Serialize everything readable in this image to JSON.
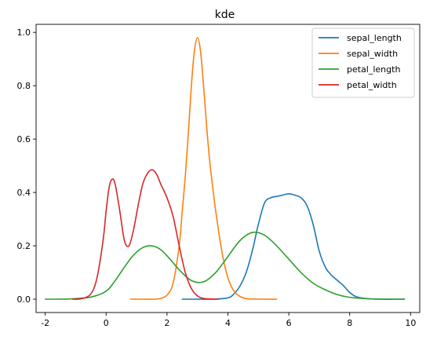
{
  "chart_data": {
    "type": "line",
    "title": "kde",
    "xlabel": "",
    "ylabel": "",
    "xlim": [
      -2.3,
      10.3
    ],
    "ylim": [
      -0.05,
      1.03
    ],
    "x_ticks": [
      -2,
      0,
      2,
      4,
      6,
      8,
      10
    ],
    "x_tick_labels": [
      "-2",
      "0",
      "2",
      "4",
      "6",
      "8",
      "10"
    ],
    "y_ticks": [
      0.0,
      0.2,
      0.4,
      0.6,
      0.8,
      1.0
    ],
    "y_tick_labels": [
      "0.0",
      "0.2",
      "0.4",
      "0.6",
      "0.8",
      "1.0"
    ],
    "grid": false,
    "legend_position": "top-right",
    "series": [
      {
        "name": "sepal_length",
        "color": "#1f77b4",
        "x": [
          2.5,
          3.0,
          3.5,
          4.0,
          4.2,
          4.4,
          4.6,
          4.8,
          5.0,
          5.2,
          5.4,
          5.6,
          5.8,
          6.0,
          6.2,
          6.4,
          6.6,
          6.8,
          7.0,
          7.2,
          7.4,
          7.6,
          7.8,
          8.0,
          8.2,
          8.5,
          9.0,
          9.5,
          9.8
        ],
        "y": [
          0.0,
          0.0,
          0.0,
          0.005,
          0.02,
          0.05,
          0.1,
          0.18,
          0.28,
          0.36,
          0.38,
          0.385,
          0.39,
          0.395,
          0.39,
          0.38,
          0.35,
          0.28,
          0.18,
          0.12,
          0.09,
          0.07,
          0.05,
          0.025,
          0.01,
          0.003,
          0.0,
          0.0,
          0.0
        ]
      },
      {
        "name": "sepal_width",
        "color": "#ff7f0e",
        "x": [
          0.8,
          1.2,
          1.6,
          1.8,
          2.0,
          2.2,
          2.4,
          2.5,
          2.6,
          2.7,
          2.8,
          2.9,
          3.0,
          3.1,
          3.2,
          3.3,
          3.4,
          3.5,
          3.6,
          3.8,
          4.0,
          4.2,
          4.4,
          4.6,
          5.0,
          5.6
        ],
        "y": [
          0.0,
          0.0,
          0.0,
          0.003,
          0.015,
          0.06,
          0.2,
          0.33,
          0.46,
          0.62,
          0.8,
          0.93,
          0.98,
          0.93,
          0.8,
          0.65,
          0.52,
          0.42,
          0.33,
          0.18,
          0.08,
          0.03,
          0.01,
          0.002,
          0.0,
          0.0
        ]
      },
      {
        "name": "petal_length",
        "color": "#2ca02c",
        "x": [
          -2.0,
          -1.2,
          -0.5,
          0.0,
          0.3,
          0.6,
          0.9,
          1.2,
          1.5,
          1.8,
          2.1,
          2.4,
          2.8,
          3.2,
          3.6,
          4.0,
          4.4,
          4.8,
          5.2,
          5.6,
          6.0,
          6.4,
          6.8,
          7.2,
          7.6,
          8.0,
          8.5,
          9.0,
          9.5,
          9.8
        ],
        "y": [
          0.0,
          0.001,
          0.008,
          0.03,
          0.07,
          0.12,
          0.165,
          0.193,
          0.2,
          0.185,
          0.15,
          0.11,
          0.07,
          0.065,
          0.1,
          0.16,
          0.22,
          0.25,
          0.24,
          0.2,
          0.15,
          0.1,
          0.06,
          0.035,
          0.017,
          0.007,
          0.002,
          0.0,
          0.0,
          0.0
        ]
      },
      {
        "name": "petal_width",
        "color": "#d62728",
        "x": [
          -1.1,
          -0.8,
          -0.5,
          -0.3,
          -0.1,
          0.0,
          0.1,
          0.2,
          0.3,
          0.45,
          0.6,
          0.75,
          0.9,
          1.05,
          1.2,
          1.35,
          1.5,
          1.65,
          1.8,
          2.0,
          2.2,
          2.4,
          2.6,
          2.8,
          3.0,
          3.2,
          3.4,
          3.7
        ],
        "y": [
          0.0,
          0.002,
          0.02,
          0.08,
          0.22,
          0.33,
          0.42,
          0.45,
          0.43,
          0.33,
          0.22,
          0.2,
          0.26,
          0.35,
          0.43,
          0.47,
          0.485,
          0.47,
          0.43,
          0.38,
          0.31,
          0.2,
          0.1,
          0.04,
          0.012,
          0.003,
          0.001,
          0.0
        ]
      }
    ]
  }
}
